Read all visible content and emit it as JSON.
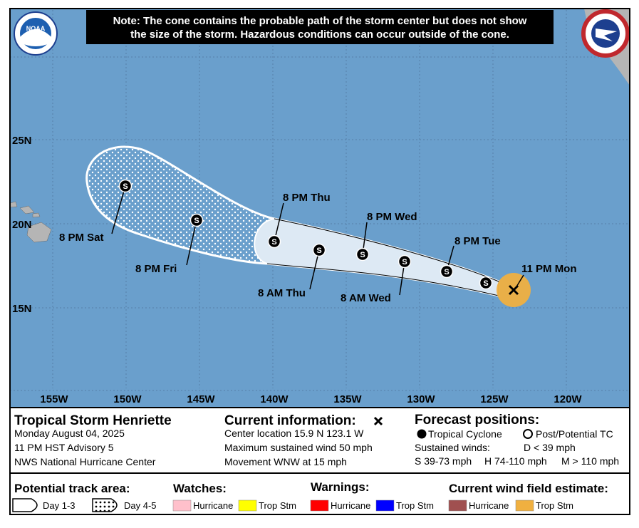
{
  "notice": [
    "Note: The cone contains the probable path of the storm center but does not show",
    "the size of the storm. Hazardous conditions can occur outside of the cone."
  ],
  "logo_text": "NOAA",
  "map": {
    "lat_labels": [
      "25N",
      "20N",
      "15N"
    ],
    "lon_labels": [
      "155W",
      "150W",
      "145W",
      "140W",
      "135W",
      "130W",
      "125W",
      "120W"
    ],
    "marker_letter": "S",
    "forecast_labels": [
      "11 PM Mon",
      "8 PM Tue",
      "8 AM Wed",
      "8 PM Wed",
      "8 AM Thu",
      "8 PM Thu",
      "8 PM Fri",
      "8 PM Sat"
    ]
  },
  "info": {
    "storm": {
      "title": "Tropical Storm Henriette",
      "lines": [
        "Monday August 04, 2025",
        "11 PM HST Advisory 5",
        "NWS National Hurricane Center"
      ]
    },
    "current": {
      "title": "Current information:",
      "lines": [
        "Center location 15.9 N 123.1 W",
        "Maximum sustained wind 50 mph",
        "Movement WNW at 15 mph"
      ]
    },
    "forecast": {
      "title": "Forecast positions:",
      "tropical": "Tropical Cyclone",
      "post": "Post/Potential TC",
      "sustained": "Sustained winds:",
      "d": "D < 39 mph",
      "s": "S 39-73 mph",
      "h": "H 74-110 mph",
      "m": "M > 110 mph"
    }
  },
  "legend": {
    "track_title": "Potential track area:",
    "day13": "Day 1-3",
    "day45": "Day 4-5",
    "watches_title": "Watches:",
    "warnings_title": "Warnings:",
    "wind_title": "Current wind field estimate:",
    "hurricane": "Hurricane",
    "trop_stm": "Trop Stm"
  }
}
